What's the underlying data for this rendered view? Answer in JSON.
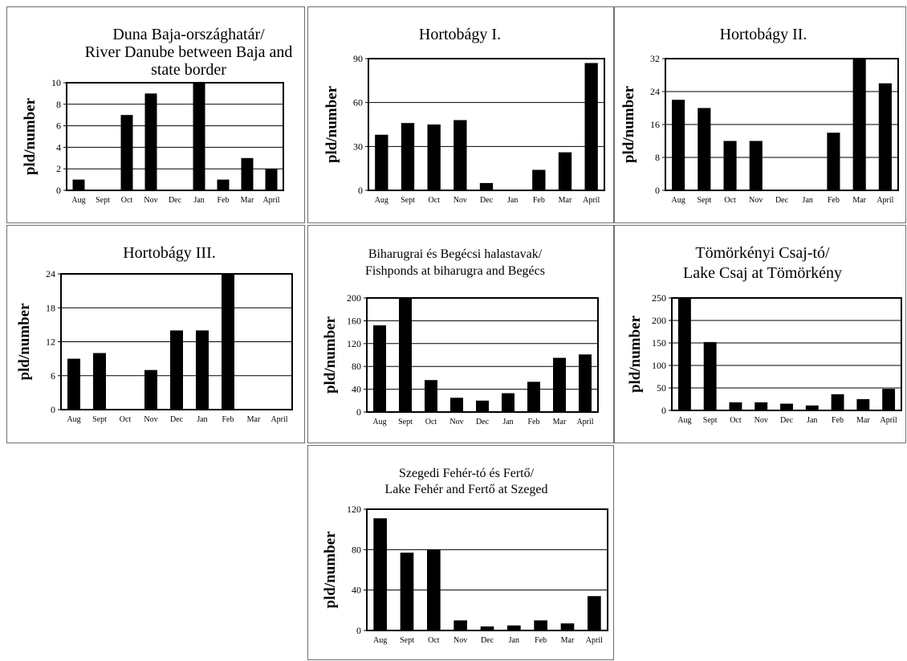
{
  "colors": {
    "bar": "#000000",
    "grid": "#000000",
    "frame": "#000000",
    "panel_border": "#6f6f6f"
  },
  "chart_data": [
    {
      "type": "bar",
      "title": [
        "Duna Baja-országhatár/",
        "River Danube between Baja and",
        "state border"
      ],
      "ylabel": "pld/number",
      "categories": [
        "Aug",
        "Sept",
        "Oct",
        "Nov",
        "Dec",
        "Jan",
        "Feb",
        "Mar",
        "April"
      ],
      "values": [
        1,
        0,
        7,
        9,
        0,
        10,
        1,
        3,
        2
      ],
      "ylim": [
        0,
        10
      ],
      "yticks": [
        0,
        2,
        4,
        6,
        8,
        10
      ],
      "grid": true
    },
    {
      "type": "bar",
      "title": [
        "Hortobágy I."
      ],
      "ylabel": "pld/number",
      "categories": [
        "Aug",
        "Sept",
        "Oct",
        "Nov",
        "Dec",
        "Jan",
        "Feb",
        "Mar",
        "April"
      ],
      "values": [
        38,
        46,
        45,
        48,
        5,
        0,
        14,
        26,
        87
      ],
      "ylim": [
        0,
        90
      ],
      "yticks": [
        0,
        30,
        60,
        90
      ],
      "grid": true
    },
    {
      "type": "bar",
      "title": [
        "Hortobágy II."
      ],
      "ylabel": "pld/number",
      "categories": [
        "Aug",
        "Sept",
        "Oct",
        "Nov",
        "Dec",
        "Jan",
        "Feb",
        "Mar",
        "April"
      ],
      "values": [
        22,
        20,
        12,
        12,
        0,
        0,
        14,
        32,
        26
      ],
      "ylim": [
        0,
        32
      ],
      "yticks": [
        0,
        8,
        16,
        24,
        32
      ],
      "grid": true
    },
    {
      "type": "bar",
      "title": [
        "Hortobágy III."
      ],
      "ylabel": "pld/number",
      "categories": [
        "Aug",
        "Sept",
        "Oct",
        "Nov",
        "Dec",
        "Jan",
        "Feb",
        "Mar",
        "April"
      ],
      "values": [
        9,
        10,
        0,
        7,
        14,
        14,
        24,
        0,
        0
      ],
      "ylim": [
        0,
        24
      ],
      "yticks": [
        0,
        6,
        12,
        18,
        24
      ],
      "grid": true
    },
    {
      "type": "bar",
      "title": [
        "Biharugrai és Begécsi halastavak/",
        "Fishponds at biharugra and Begécs"
      ],
      "ylabel": "pld/number",
      "categories": [
        "Aug",
        "Sept",
        "Oct",
        "Nov",
        "Dec",
        "Jan",
        "Feb",
        "Mar",
        "April"
      ],
      "values": [
        152,
        200,
        56,
        25,
        20,
        33,
        53,
        95,
        101
      ],
      "ylim": [
        0,
        200
      ],
      "yticks": [
        0,
        40,
        80,
        120,
        160,
        200
      ],
      "grid": true
    },
    {
      "type": "bar",
      "title": [
        "Tömörkényi Csaj-tó/",
        "Lake Csaj at Tömörkény"
      ],
      "ylabel": "pld/number",
      "categories": [
        "Aug",
        "Sept",
        "Oct",
        "Nov",
        "Dec",
        "Jan",
        "Feb",
        "Mar",
        "April"
      ],
      "values": [
        250,
        152,
        18,
        18,
        15,
        11,
        36,
        25,
        48
      ],
      "ylim": [
        0,
        250
      ],
      "yticks": [
        0,
        50,
        100,
        150,
        200,
        250
      ],
      "grid": true
    },
    {
      "type": "bar",
      "title": [
        "Szegedi Fehér-tó és Fertő/",
        "Lake Fehér and Fertő at Szeged"
      ],
      "ylabel": "pld/number",
      "categories": [
        "Aug",
        "Sept",
        "Oct",
        "Nov",
        "Dec",
        "Jan",
        "Feb",
        "Mar",
        "April"
      ],
      "values": [
        111,
        77,
        80,
        10,
        4,
        5,
        10,
        7,
        34
      ],
      "ylim": [
        0,
        120
      ],
      "yticks": [
        0,
        40,
        80,
        120
      ],
      "grid": true
    }
  ]
}
